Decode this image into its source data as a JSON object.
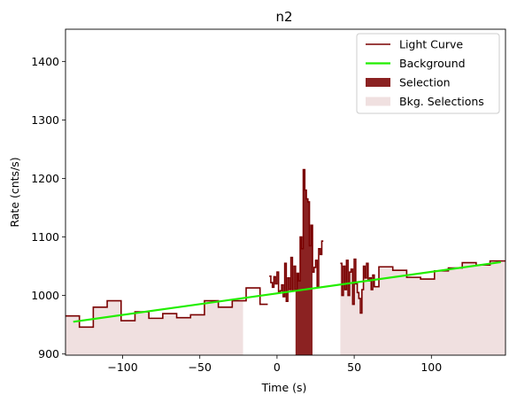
{
  "chart_data": {
    "type": "line",
    "title": "n2",
    "xlabel": "Time (s)",
    "ylabel": "Rate (cnts/s)",
    "xlim": [
      -137,
      148
    ],
    "ylim": [
      898,
      1455
    ],
    "xticks": [
      -100,
      -50,
      0,
      50,
      100
    ],
    "yticks": [
      900,
      1000,
      1100,
      1200,
      1300,
      1400
    ],
    "grid": false,
    "legend_position": "top-right",
    "colors": {
      "light_curve": "#7a0000",
      "background": "#22ee00",
      "selection": "#8b2222",
      "bkg_selection": "#f0e0e0"
    },
    "legend": [
      {
        "label": "Light Curve",
        "kind": "line",
        "color": "#7a0000"
      },
      {
        "label": "Background",
        "kind": "line",
        "color": "#22ee00"
      },
      {
        "label": "Selection",
        "kind": "patch",
        "color": "#8b2222"
      },
      {
        "label": "Bkg. Selections",
        "kind": "patch",
        "color": "#f0e0e0"
      }
    ],
    "background_fit": {
      "x": [
        -132,
        145
      ],
      "y": [
        955,
        1057
      ]
    },
    "bkg_selections": [
      [
        -137,
        -22
      ],
      [
        41,
        148
      ]
    ],
    "source_selection": [
      12,
      23
    ],
    "light_curve": [
      [
        -137,
        965
      ],
      [
        -128,
        946
      ],
      [
        -119,
        980
      ],
      [
        -110,
        991
      ],
      [
        -101,
        957
      ],
      [
        -92,
        972
      ],
      [
        -83,
        961
      ],
      [
        -74,
        969
      ],
      [
        -65,
        962
      ],
      [
        -56,
        967
      ],
      [
        -47,
        991
      ],
      [
        -38,
        980
      ],
      [
        -29,
        991
      ],
      [
        -20,
        1013
      ],
      [
        -11,
        985
      ],
      [
        -6,
        null
      ],
      [
        -5,
        1033
      ],
      [
        -4,
        1022
      ],
      [
        -3,
        1014
      ],
      [
        -2,
        1032
      ],
      [
        -1,
        1020
      ],
      [
        0,
        1040
      ],
      [
        1,
        1005
      ],
      [
        2,
        1008
      ],
      [
        3,
        1018
      ],
      [
        4,
        998
      ],
      [
        5,
        1055
      ],
      [
        6,
        990
      ],
      [
        7,
        1030
      ],
      [
        8,
        1010
      ],
      [
        9,
        1065
      ],
      [
        10,
        1008
      ],
      [
        11,
        1050
      ],
      [
        12,
        1010
      ],
      [
        13,
        1038
      ],
      [
        14,
        1025
      ],
      [
        15,
        1100
      ],
      [
        16,
        1080
      ],
      [
        17,
        1215
      ],
      [
        18,
        1180
      ],
      [
        19,
        1165
      ],
      [
        20,
        1160
      ],
      [
        21,
        1085
      ],
      [
        22,
        1120
      ],
      [
        23,
        1040
      ],
      [
        24,
        1048
      ],
      [
        25,
        1060
      ],
      [
        26,
        1015
      ],
      [
        27,
        1080
      ],
      [
        28,
        1070
      ],
      [
        29,
        1093
      ],
      [
        30,
        null
      ],
      [
        41,
        1055
      ],
      [
        42,
        1000
      ],
      [
        43,
        1050
      ],
      [
        44,
        1010
      ],
      [
        45,
        1060
      ],
      [
        46,
        1000
      ],
      [
        47,
        1040
      ],
      [
        48,
        1045
      ],
      [
        49,
        985
      ],
      [
        50,
        1062
      ],
      [
        51,
        1020
      ],
      [
        52,
        1005
      ],
      [
        53,
        995
      ],
      [
        54,
        970
      ],
      [
        55,
        1010
      ],
      [
        56,
        1050
      ],
      [
        57,
        1030
      ],
      [
        58,
        1055
      ],
      [
        59,
        1025
      ],
      [
        60,
        1030
      ],
      [
        61,
        1010
      ],
      [
        62,
        1035
      ],
      [
        63,
        1015
      ],
      [
        66,
        1049
      ],
      [
        75,
        1043
      ],
      [
        84,
        1031
      ],
      [
        93,
        1028
      ],
      [
        102,
        1042
      ],
      [
        111,
        1047
      ],
      [
        120,
        1056
      ],
      [
        129,
        1052
      ],
      [
        138,
        1059
      ],
      [
        148,
        1047
      ]
    ]
  }
}
